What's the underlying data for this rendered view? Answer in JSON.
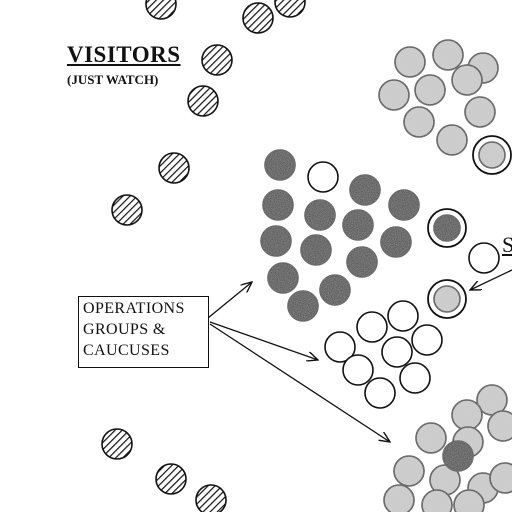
{
  "labels": {
    "visitors_title": "VISITORS",
    "visitors_subtitle": "(JUST WATCH)",
    "operations_box": [
      "OPERATIONS",
      "GROUPS &",
      "CAUCUSES"
    ],
    "edge_letter": "S"
  },
  "colors": {
    "ink": "#111111",
    "dark_fill": "#1a1a1a",
    "light_fill": "#d0d0d0",
    "white_fill": "#ffffff"
  },
  "legend": {
    "hatched": "visitors",
    "dark": "operations group",
    "white": "operations group",
    "gray": "operations group"
  }
}
